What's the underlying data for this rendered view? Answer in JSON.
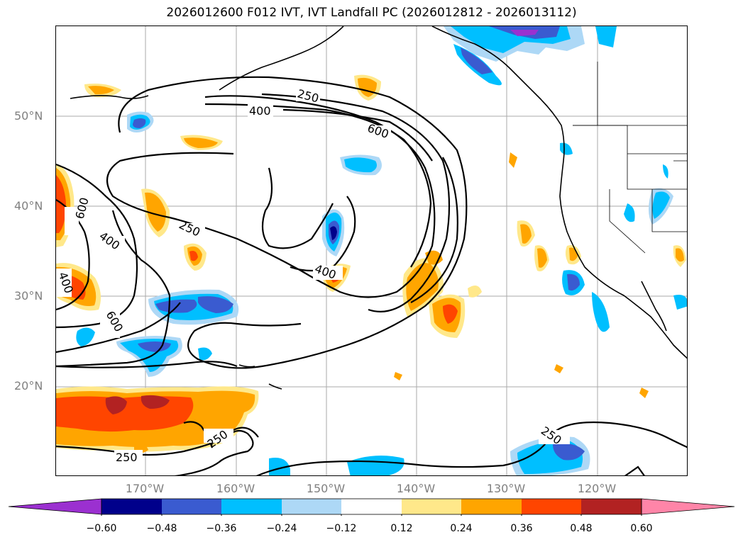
{
  "title": "2026012600 F012 IVT, IVT Landfall PC (2026012812 - 2026013112)",
  "axes": {
    "lat_labels": [
      "50°N",
      "40°N",
      "30°N",
      "20°N"
    ],
    "lon_labels": [
      "170°W",
      "160°W",
      "150°W",
      "140°W",
      "130°W",
      "120°W"
    ]
  },
  "contour_labels": {
    "c250_top": "250",
    "c400_top": "400",
    "c600_top": "600",
    "c600_left": "600",
    "c250_mid": "250",
    "c400_left": "400",
    "c400_center": "400",
    "c400_farleft": "400",
    "c600_lower": "600",
    "c250_bottom_mid": "250",
    "c250_bottom_left": "250",
    "c250_bottom_right": "250"
  },
  "colorbar": {
    "ticks": [
      "−0.60",
      "−0.48",
      "−0.36",
      "−0.24",
      "−0.12",
      "0.12",
      "0.24",
      "0.36",
      "0.48",
      "0.60"
    ],
    "colors": {
      "extend_low": "#9b30d0",
      "lt_-0.60": "#00008b",
      "lt_-0.48": "#3a5bd0",
      "lt_-0.36": "#00bfff",
      "lt_-0.24": "#add8f6",
      "lt_-0.12": "#ffffff",
      "neutral": "#ffffff",
      "lt_0.24": "#ffe88a",
      "lt_0.36": "#ffa500",
      "lt_0.48": "#ff4500",
      "lt_0.60": "#b22222",
      "extend_high": "#ff85a8"
    }
  },
  "chart_data": {
    "type": "contour_map",
    "title": "2026012600 F012 IVT, IVT Landfall PC (2026012812 - 2026013112)",
    "projection": "lat-lon",
    "lon_range": [
      -180,
      -110
    ],
    "lat_range": [
      10,
      60
    ],
    "contour_levels": [
      250,
      400,
      600
    ],
    "colorbar_levels": [
      -0.6,
      -0.48,
      -0.36,
      -0.24,
      -0.12,
      0.12,
      0.24,
      0.36,
      0.48,
      0.6
    ],
    "grid": true
  }
}
